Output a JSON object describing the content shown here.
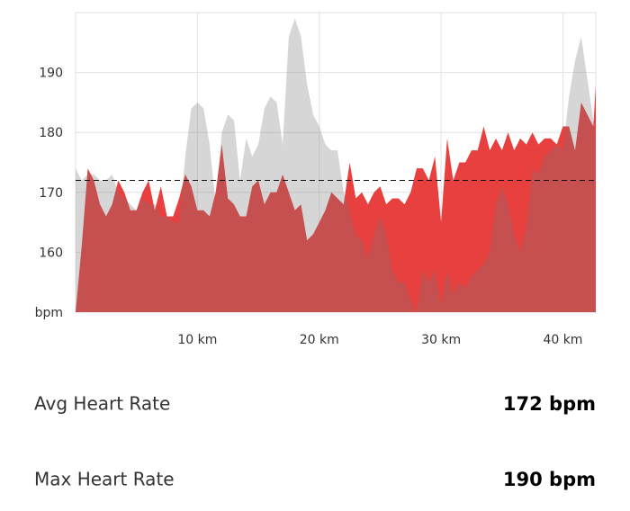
{
  "chart_data": {
    "type": "area",
    "x": [
      0,
      0.5,
      1,
      1.5,
      2,
      2.5,
      3,
      3.5,
      4,
      4.5,
      5,
      5.5,
      6,
      6.5,
      7,
      7.5,
      8,
      8.5,
      9,
      9.5,
      10,
      10.5,
      11,
      11.5,
      12,
      12.5,
      13,
      13.5,
      14,
      14.5,
      15,
      15.5,
      16,
      16.5,
      17,
      17.5,
      18,
      18.5,
      19,
      19.5,
      20,
      20.5,
      21,
      21.5,
      22,
      22.5,
      23,
      23.5,
      24,
      24.5,
      25,
      25.5,
      26,
      26.5,
      27,
      27.5,
      28,
      28.5,
      29,
      29.5,
      30,
      30.5,
      31,
      31.5,
      32,
      32.5,
      33,
      33.5,
      34,
      34.5,
      35,
      35.5,
      36,
      36.5,
      37,
      37.5,
      38,
      38.5,
      39,
      39.5,
      40,
      40.5,
      41,
      41.5,
      42,
      42.5,
      42.7
    ],
    "series": [
      {
        "color": "#e8403f",
        "values": [
          150,
          161,
          174,
          172,
          168,
          166,
          168,
          172,
          170,
          167,
          167,
          170,
          172,
          167,
          171,
          166,
          166,
          169,
          173,
          171,
          167,
          167,
          166,
          170,
          178,
          169,
          168,
          166,
          166,
          171,
          172,
          168,
          170,
          170,
          173,
          170,
          167,
          168,
          162,
          163,
          165,
          167,
          170,
          169,
          168,
          175,
          169,
          170,
          168,
          170,
          171,
          168,
          169,
          169,
          168,
          170,
          174,
          174,
          172,
          176,
          165,
          179,
          172,
          175,
          175,
          177,
          177,
          181,
          177,
          179,
          177,
          180,
          177,
          179,
          178,
          180,
          178,
          179,
          179,
          178,
          181,
          181,
          177,
          185,
          183,
          181,
          188
        ]
      },
      {
        "color": "#777777",
        "values": [
          174,
          172,
          173,
          173,
          172,
          172,
          173,
          170,
          169,
          168,
          167,
          169,
          168,
          168,
          166,
          166,
          165,
          165,
          176,
          184,
          185,
          184,
          178,
          168,
          180,
          183,
          182,
          172,
          179,
          176,
          178,
          184,
          186,
          185,
          178,
          196,
          199,
          196,
          188,
          183,
          181,
          178,
          177,
          177,
          170,
          167,
          163,
          162,
          159,
          163,
          166,
          163,
          157,
          155,
          155,
          152,
          150,
          157,
          155,
          157,
          151,
          157,
          153,
          155,
          154,
          156,
          157,
          158,
          160,
          168,
          171,
          168,
          163,
          160,
          164,
          174,
          173,
          176,
          177,
          178,
          177,
          186,
          192,
          196,
          189,
          182,
          180
        ]
      }
    ],
    "xlim": [
      0,
      42.7
    ],
    "xticks": [
      {
        "value": 10,
        "label": "10 km"
      },
      {
        "value": 20,
        "label": "20 km"
      },
      {
        "value": 30,
        "label": "30 km"
      },
      {
        "value": 40,
        "label": "40 km"
      }
    ],
    "ylim": [
      150,
      200
    ],
    "yticks": [
      {
        "value": 150,
        "label": "bpm"
      },
      160,
      170,
      180,
      190
    ],
    "reference_line": 172,
    "grid": true
  },
  "stats": [
    {
      "label": "Avg Heart Rate",
      "value": "172 bpm"
    },
    {
      "label": "Max Heart Rate",
      "value": "190 bpm"
    }
  ]
}
